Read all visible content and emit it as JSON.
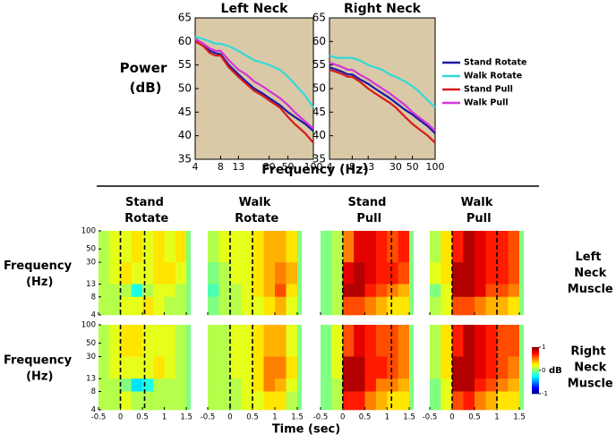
{
  "chart_data": [
    {
      "type": "line",
      "title": "Left Neck",
      "ylabel": "Power (dB)",
      "xlabel": "Frequency (Hz)",
      "xlog": true,
      "background": "#d9c9a6",
      "x": [
        4,
        5,
        6,
        7,
        8,
        10,
        13,
        16,
        20,
        25,
        30,
        40,
        50,
        60,
        80,
        100
      ],
      "xlim": [
        4,
        100
      ],
      "xticks": [
        4,
        8,
        13,
        30,
        50,
        100
      ],
      "ylim": [
        35,
        65
      ],
      "yticks": [
        35,
        40,
        45,
        50,
        55,
        60,
        65
      ],
      "series": [
        {
          "color": "#1a1aa6",
          "values": [
            60.5,
            59.5,
            58,
            57.5,
            57.3,
            55,
            53,
            51.5,
            50,
            49,
            48,
            46.5,
            45,
            44,
            42.5,
            41
          ]
        },
        {
          "color": "#33d9d9",
          "values": [
            61,
            60.5,
            60,
            59.5,
            59.5,
            59,
            58,
            57,
            56,
            55.5,
            55,
            54,
            52.5,
            51,
            48.5,
            46
          ]
        },
        {
          "color": "#d91a1a",
          "values": [
            60,
            59,
            57.5,
            57,
            57,
            54.5,
            52.5,
            51,
            49.5,
            48.5,
            47.5,
            46,
            44,
            42.5,
            40.5,
            38.5
          ]
        },
        {
          "color": "#d633d6",
          "values": [
            60.5,
            59.5,
            58.5,
            58,
            58,
            56,
            54,
            53,
            51.5,
            50.5,
            49.5,
            48,
            46.5,
            45,
            43,
            41.5
          ]
        }
      ]
    },
    {
      "type": "line",
      "title": "Right Neck",
      "xlog": true,
      "background": "#d9c9a6",
      "x": [
        4,
        5,
        6,
        7,
        8,
        10,
        13,
        16,
        20,
        25,
        30,
        40,
        50,
        60,
        80,
        100
      ],
      "xlim": [
        4,
        100
      ],
      "xticks": [
        4,
        8,
        13,
        30,
        50,
        100
      ],
      "ylim": [
        35,
        65
      ],
      "yticks": [
        35,
        40,
        45,
        50,
        55,
        60,
        65
      ],
      "series": [
        {
          "name": "Stand Rotate",
          "color": "#1a1aa6",
          "values": [
            54.5,
            54,
            53.5,
            53,
            53,
            52,
            51,
            50,
            49,
            48,
            47,
            45.5,
            44.5,
            43.5,
            42,
            40.5
          ]
        },
        {
          "name": "Walk Rotate",
          "color": "#33d9d9",
          "values": [
            57,
            56.5,
            56.5,
            56.5,
            56.5,
            56,
            55,
            54.5,
            54,
            53,
            52.5,
            51.5,
            50.5,
            49.5,
            47.5,
            46
          ]
        },
        {
          "name": "Stand Pull",
          "color": "#d91a1a",
          "values": [
            54,
            53.5,
            53,
            52.5,
            52.5,
            51.5,
            50,
            49,
            48,
            47,
            46,
            44,
            42.5,
            41.5,
            40,
            38.5
          ]
        },
        {
          "name": "Walk Pull",
          "color": "#d633d6",
          "values": [
            55.5,
            55,
            54.5,
            54,
            54,
            53,
            52,
            51,
            50,
            49,
            48,
            46.5,
            45,
            44,
            42.5,
            41
          ]
        }
      ]
    },
    {
      "type": "heatmap",
      "xlabel": "Time (sec)",
      "ylabel": "Frequency (Hz)",
      "ylog": true,
      "xlim": [
        -0.5,
        1.6
      ],
      "xticks": [
        -0.5,
        0,
        0.5,
        1,
        1.5
      ],
      "ylim": [
        4,
        100
      ],
      "yticks": [
        4,
        8,
        13,
        30,
        50,
        100
      ],
      "time_bins": [
        -0.5,
        -0.25,
        0,
        0.25,
        0.5,
        0.75,
        1,
        1.25,
        1.5
      ],
      "freq_bins": [
        100,
        30,
        13,
        8,
        4
      ],
      "clim": [
        -1,
        1
      ],
      "cticks": [
        1,
        0,
        -1
      ],
      "colorbar_label": "dB",
      "columns": [
        {
          "title": "Stand Rotate",
          "events": [
            0,
            0.55
          ]
        },
        {
          "title": "Walk Rotate",
          "events": [
            0,
            0.5
          ]
        },
        {
          "title": "Stand Pull",
          "events": [
            0,
            1.1
          ]
        },
        {
          "title": "Walk Pull",
          "events": [
            0,
            1
          ]
        }
      ],
      "rows": [
        {
          "label": "Left Neck Muscle",
          "panels": [
            [
              [
                0.1,
                0.2,
                0.2,
                0.3,
                0.2,
                0.3,
                0.2,
                0.3
              ],
              [
                0.1,
                0.2,
                0.3,
                0.2,
                0.2,
                0.3,
                0.3,
                0.2
              ],
              [
                0.1,
                0.1,
                0.1,
                -0.2,
                0.1,
                0.2,
                0.2,
                0.1
              ],
              [
                0.1,
                0.1,
                0.2,
                0.2,
                0.3,
                0.2,
                0.1,
                0.1
              ]
            ],
            [
              [
                0.1,
                0.2,
                0.2,
                0.2,
                0.3,
                0.4,
                0.4,
                0.3
              ],
              [
                0,
                0.1,
                0.2,
                0.2,
                0.3,
                0.4,
                0.5,
                0.4
              ],
              [
                -0.1,
                0.1,
                0.1,
                0.2,
                0.3,
                0.4,
                0.6,
                0.3
              ],
              [
                0,
                0.1,
                0.1,
                0.2,
                0.2,
                0.3,
                0.4,
                0.2
              ]
            ],
            [
              [
                0,
                0.1,
                0.5,
                0.8,
                0.8,
                0.7,
                0.6,
                0.7
              ],
              [
                0,
                0.1,
                0.8,
                0.9,
                0.8,
                0.7,
                0.7,
                0.6
              ],
              [
                0,
                0.1,
                0.9,
                0.9,
                0.7,
                0.6,
                0.5,
                0.4
              ],
              [
                0,
                0.1,
                0.6,
                0.6,
                0.5,
                0.4,
                0.3,
                0.3
              ]
            ],
            [
              [
                0.1,
                0.3,
                0.7,
                0.9,
                0.8,
                0.7,
                0.7,
                0.6
              ],
              [
                0.2,
                0.3,
                0.9,
                0.9,
                0.8,
                0.7,
                0.7,
                0.6
              ],
              [
                0,
                0.2,
                0.9,
                0.9,
                0.8,
                0.6,
                0.6,
                0.5
              ],
              [
                0.1,
                0.2,
                0.6,
                0.6,
                0.5,
                0.4,
                0.4,
                0.3
              ]
            ]
          ]
        },
        {
          "label": "Right Neck Muscle",
          "panels": [
            [
              [
                0.1,
                0.2,
                0.3,
                0.3,
                0.2,
                0.2,
                0.2,
                0.1
              ],
              [
                0.1,
                0.2,
                0.2,
                0.2,
                0.2,
                0.3,
                0.2,
                0.1
              ],
              [
                0.1,
                0.1,
                0,
                -0.3,
                -0.2,
                0.1,
                0.1,
                0.1
              ],
              [
                0.1,
                0.1,
                0.2,
                0.1,
                0.1,
                0.1,
                0.1,
                0.1
              ]
            ],
            [
              [
                0.1,
                0.1,
                0.2,
                0.2,
                0.3,
                0.4,
                0.4,
                0.2
              ],
              [
                0.1,
                0.1,
                0.2,
                0.2,
                0.3,
                0.5,
                0.5,
                0.3
              ],
              [
                0.1,
                0.1,
                0.1,
                0.2,
                0.3,
                0.5,
                0.4,
                0.2
              ],
              [
                0.1,
                0.1,
                0.1,
                0.2,
                0.2,
                0.3,
                0.3,
                0.1
              ]
            ],
            [
              [
                0,
                0.2,
                0.6,
                0.8,
                0.7,
                0.6,
                0.6,
                0.5
              ],
              [
                0,
                0.2,
                0.9,
                0.9,
                0.7,
                0.7,
                0.6,
                0.5
              ],
              [
                0,
                0.1,
                0.9,
                0.9,
                0.7,
                0.5,
                0.5,
                0.4
              ],
              [
                0,
                0.1,
                0.7,
                0.7,
                0.5,
                0.4,
                0.3,
                0.3
              ]
            ],
            [
              [
                0.1,
                0.3,
                0.7,
                0.9,
                0.8,
                0.7,
                0.6,
                0.6
              ],
              [
                0.1,
                0.3,
                0.9,
                0.9,
                0.8,
                0.7,
                0.6,
                0.5
              ],
              [
                0,
                0.2,
                0.9,
                0.9,
                0.7,
                0.6,
                0.5,
                0.4
              ],
              [
                0,
                0.2,
                0.6,
                0.7,
                0.5,
                0.4,
                0.3,
                0.3
              ]
            ]
          ]
        }
      ]
    }
  ]
}
